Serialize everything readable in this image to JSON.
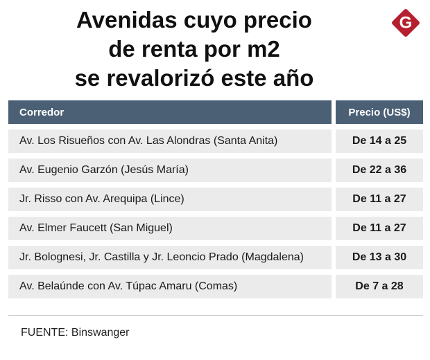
{
  "header": {
    "title": [
      "Avenidas cuyo precio",
      "de renta por m2",
      "se revalorizó este año"
    ],
    "logo": "G"
  },
  "table": {
    "columns": [
      "Corredor",
      "Precio (US$)"
    ],
    "rows": [
      [
        "Av. Los Risueños con Av. Las  Alondras (Santa Anita)",
        "De 14 a 25"
      ],
      [
        "Av. Eugenio Garzón (Jesús María)",
        "De 22 a 36"
      ],
      [
        "Jr. Risso con Av. Arequipa (Lince)",
        "De 11 a 27"
      ],
      [
        "Av. Elmer Faucett (San Miguel)",
        "De 11 a 27"
      ],
      [
        "Jr. Bolognesi, Jr. Castilla y Jr. Leoncio Prado (Magdalena)",
        "De 13 a 30"
      ],
      [
        "Av. Belaúnde con Av. Túpac Amaru (Comas)",
        "De 7 a 28"
      ]
    ]
  },
  "footer": {
    "source": "FUENTE: Binswanger"
  }
}
